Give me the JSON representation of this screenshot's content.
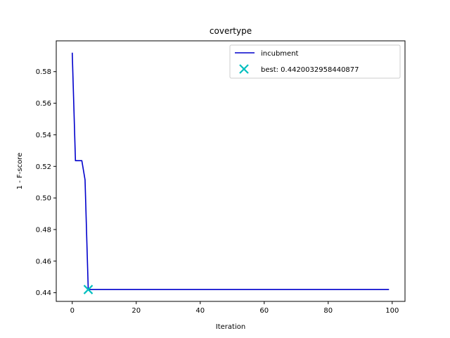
{
  "chart_data": {
    "type": "line",
    "title": "covertype",
    "xlabel": "Iteration",
    "ylabel": "1 - F-score",
    "xlim": [
      -5,
      104
    ],
    "ylim": [
      0.4345,
      0.5995
    ],
    "xticks": [
      0,
      20,
      40,
      60,
      80,
      100
    ],
    "yticks": [
      0.44,
      0.46,
      0.48,
      0.5,
      0.52,
      0.54,
      0.56,
      0.58
    ],
    "grid": false,
    "legend_position": "top-right",
    "series": [
      {
        "name": "incubment",
        "color": "#0000cc",
        "x": [
          0,
          1,
          2,
          3,
          4,
          5,
          99
        ],
        "y": [
          0.592,
          0.5236,
          0.5236,
          0.5236,
          0.5115,
          0.4420032958440877,
          0.4420032958440877
        ]
      }
    ],
    "best": {
      "label": "best: 0.4420032958440877",
      "color": "#00bfbf",
      "x": 5,
      "y": 0.4420032958440877
    }
  }
}
